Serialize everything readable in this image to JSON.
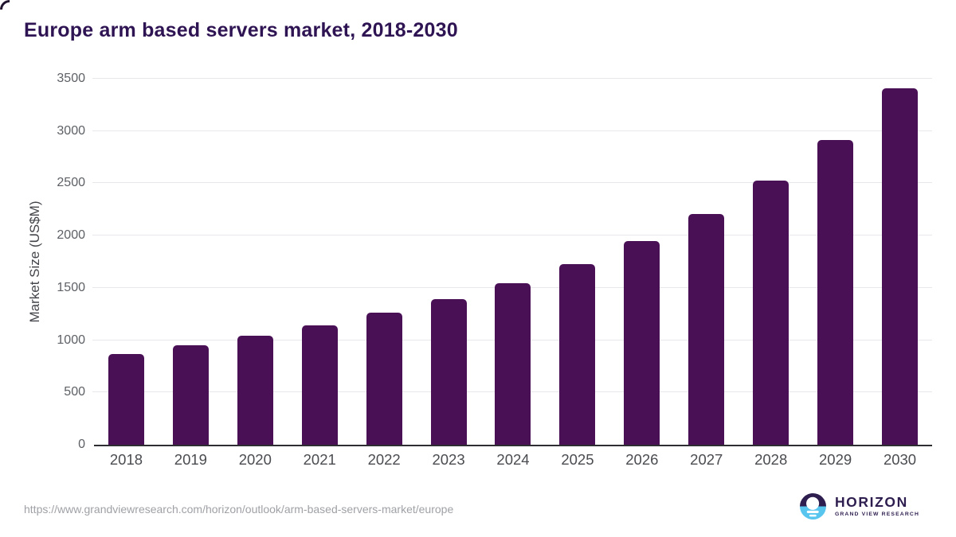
{
  "chart_data": {
    "type": "bar",
    "title": "Europe arm based servers market, 2018-2030",
    "xlabel": "",
    "ylabel": "Market Size (US$M)",
    "categories": [
      "2018",
      "2019",
      "2020",
      "2021",
      "2022",
      "2023",
      "2024",
      "2025",
      "2026",
      "2027",
      "2028",
      "2029",
      "2030"
    ],
    "values": [
      870,
      950,
      1045,
      1145,
      1265,
      1390,
      1545,
      1725,
      1945,
      2205,
      2525,
      2915,
      3410
    ],
    "ylim": [
      0,
      3500
    ],
    "yticks": [
      0,
      500,
      1000,
      1500,
      2000,
      2500,
      3000,
      3500
    ],
    "grid": "horizontal-light",
    "legend": "none",
    "bar_color": "#4a1056",
    "title_color": "#2f1453",
    "gridline_color": "#e8e8ec",
    "axis_line_color": "#2e2e32"
  },
  "footer": {
    "source_url": "https://www.grandviewresearch.com/horizon/outlook/arm-based-servers-market/europe",
    "logo": {
      "name": "HORIZON",
      "tagline": "GRAND VIEW RESEARCH",
      "mark_purple": "#2e1e4f",
      "mark_blue": "#58c5ef",
      "mark_white": "#ffffff"
    }
  }
}
